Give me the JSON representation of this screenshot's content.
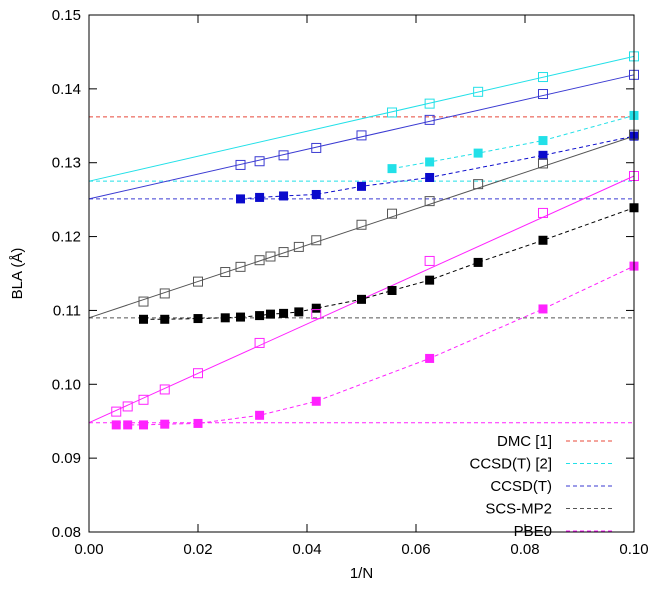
{
  "chart_data": {
    "type": "scatter",
    "title": "",
    "xlabel": "1/N",
    "ylabel": "BLA (Å)",
    "xlim": [
      0.0,
      0.1
    ],
    "ylim": [
      0.08,
      0.15
    ],
    "xticks": [
      "0.00",
      "0.02",
      "0.04",
      "0.06",
      "0.08",
      "0.10"
    ],
    "yticks": [
      "0.08",
      "0.09",
      "0.10",
      "0.11",
      "0.12",
      "0.13",
      "0.14",
      "0.15"
    ],
    "grid": false,
    "legend_position": "bottom-right",
    "references": [
      {
        "name": "DMC [1]",
        "color": "#e8483a",
        "y": 0.1362
      },
      {
        "name": "CCSD(T) [2]",
        "color": "#22e0e8",
        "y": 0.1275
      },
      {
        "name": "CCSD(T)",
        "color": "#3a3ad2",
        "y": 0.1251
      },
      {
        "name": "SCS-MP2",
        "color": "#555555",
        "y": 0.109
      },
      {
        "name": "PBE0",
        "color": "#ff22ff",
        "y": 0.0948
      }
    ],
    "series": [
      {
        "color": "#22e0e8",
        "marker": "open-square",
        "line": "solid",
        "fit": [
          [
            0.0,
            0.1275
          ],
          [
            0.1,
            0.1444
          ]
        ],
        "points": [
          [
            0.0556,
            0.1368
          ],
          [
            0.0625,
            0.138
          ],
          [
            0.0714,
            0.1396
          ],
          [
            0.0833,
            0.1416
          ],
          [
            0.1,
            0.1444
          ]
        ]
      },
      {
        "color": "#22e0e8",
        "marker": "filled-square",
        "line": "dashed",
        "points": [
          [
            0.0556,
            0.1292
          ],
          [
            0.0625,
            0.1301
          ],
          [
            0.0714,
            0.1313
          ],
          [
            0.0833,
            0.133
          ],
          [
            0.1,
            0.1364
          ]
        ]
      },
      {
        "color": "#3a3ad2",
        "marker": "open-square",
        "line": "solid",
        "fit": [
          [
            0.0,
            0.1251
          ],
          [
            0.1,
            0.1419
          ]
        ],
        "points": [
          [
            0.0278,
            0.1297
          ],
          [
            0.0313,
            0.1302
          ],
          [
            0.0357,
            0.131
          ],
          [
            0.0417,
            0.132
          ],
          [
            0.05,
            0.1337
          ],
          [
            0.0625,
            0.1358
          ],
          [
            0.0833,
            0.1393
          ],
          [
            0.1,
            0.1419
          ]
        ]
      },
      {
        "color": "#0a0acc",
        "marker": "filled-square",
        "line": "dashed",
        "points": [
          [
            0.0278,
            0.1251
          ],
          [
            0.0313,
            0.1253
          ],
          [
            0.0357,
            0.1255
          ],
          [
            0.0417,
            0.1257
          ],
          [
            0.05,
            0.1268
          ],
          [
            0.0625,
            0.128
          ],
          [
            0.0833,
            0.131
          ],
          [
            0.1,
            0.1336
          ]
        ]
      },
      {
        "color": "#555555",
        "marker": "open-square",
        "line": "solid",
        "fit": [
          [
            0.0,
            0.109
          ],
          [
            0.1,
            0.1336
          ]
        ],
        "points": [
          [
            0.01,
            0.1112
          ],
          [
            0.0139,
            0.1123
          ],
          [
            0.02,
            0.1139
          ],
          [
            0.025,
            0.1152
          ],
          [
            0.0278,
            0.1159
          ],
          [
            0.0313,
            0.1168
          ],
          [
            0.0333,
            0.1173
          ],
          [
            0.0357,
            0.1179
          ],
          [
            0.0385,
            0.1186
          ],
          [
            0.0417,
            0.1195
          ],
          [
            0.05,
            0.1216
          ],
          [
            0.0556,
            0.1231
          ],
          [
            0.0625,
            0.1248
          ],
          [
            0.0714,
            0.1271
          ],
          [
            0.0833,
            0.1299
          ],
          [
            0.1,
            0.1338
          ]
        ]
      },
      {
        "color": "#000000",
        "marker": "filled-square",
        "line": "dashed",
        "points": [
          [
            0.01,
            0.1088
          ],
          [
            0.0139,
            0.1088
          ],
          [
            0.02,
            0.1089
          ],
          [
            0.025,
            0.109
          ],
          [
            0.0278,
            0.1091
          ],
          [
            0.0313,
            0.1093
          ],
          [
            0.0333,
            0.1095
          ],
          [
            0.0357,
            0.1096
          ],
          [
            0.0385,
            0.1098
          ],
          [
            0.0417,
            0.1103
          ],
          [
            0.05,
            0.1115
          ],
          [
            0.0556,
            0.1127
          ],
          [
            0.0625,
            0.1141
          ],
          [
            0.0714,
            0.1165
          ],
          [
            0.0833,
            0.1195
          ],
          [
            0.1,
            0.1239
          ]
        ]
      },
      {
        "color": "#ff22ff",
        "marker": "open-square",
        "line": "solid",
        "fit": [
          [
            0.0,
            0.0948
          ],
          [
            0.1,
            0.1282
          ]
        ],
        "points": [
          [
            0.005,
            0.0963
          ],
          [
            0.0071,
            0.097
          ],
          [
            0.01,
            0.0979
          ],
          [
            0.0139,
            0.0993
          ],
          [
            0.02,
            0.1015
          ],
          [
            0.0313,
            0.1056
          ],
          [
            0.0417,
            0.1095
          ],
          [
            0.0625,
            0.1167
          ],
          [
            0.0833,
            0.1232
          ],
          [
            0.1,
            0.1282
          ]
        ]
      },
      {
        "color": "#ff22ff",
        "marker": "filled-square",
        "line": "dashed",
        "points": [
          [
            0.005,
            0.0945
          ],
          [
            0.0071,
            0.0945
          ],
          [
            0.01,
            0.0945
          ],
          [
            0.0139,
            0.0946
          ],
          [
            0.02,
            0.0947
          ],
          [
            0.0313,
            0.0958
          ],
          [
            0.0417,
            0.0977
          ],
          [
            0.0625,
            0.1035
          ],
          [
            0.0833,
            0.1102
          ],
          [
            0.1,
            0.116
          ]
        ]
      }
    ]
  }
}
